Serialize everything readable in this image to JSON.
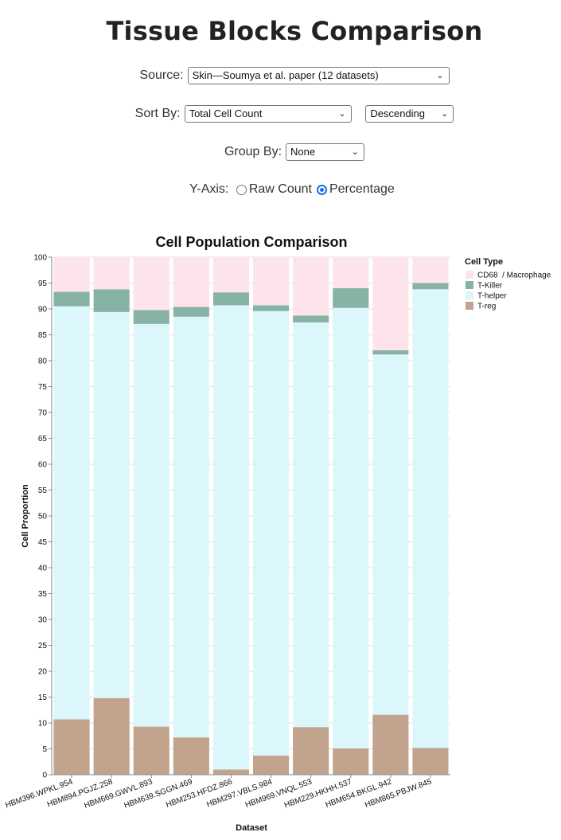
{
  "page": {
    "title": "Tissue Blocks Comparison"
  },
  "controls": {
    "source_label": "Source:",
    "source_value": "Skin—Soumya et al. paper (12 datasets)",
    "sortby_label": "Sort By:",
    "sortby_value": "Total Cell Count",
    "order_value": "Descending",
    "groupby_label": "Group By:",
    "groupby_value": "None",
    "yaxis_label": "Y-Axis:",
    "yaxis_options": [
      "Raw Count",
      "Percentage"
    ],
    "yaxis_selected": "Percentage"
  },
  "chart_data": {
    "type": "bar",
    "stacked": true,
    "title": "Cell Population Comparison",
    "xlabel": "Dataset",
    "ylabel": "Cell Proportion",
    "ylim": [
      0,
      100
    ],
    "yticks": [
      0,
      5,
      10,
      15,
      20,
      25,
      30,
      35,
      40,
      45,
      50,
      55,
      60,
      65,
      70,
      75,
      80,
      85,
      90,
      95,
      100
    ],
    "grid": true,
    "legend_title": "Cell Type",
    "legend_position": "right",
    "categories": [
      "HBM396.WPKL.954",
      "HBM894.PGJZ.258",
      "HBM669.GWVL.893",
      "HBM639.SGGN.469",
      "HBM253.HFDZ.866",
      "HBM297.VBLS.984",
      "HBM969.VNQL.553",
      "HBM229.HKHH.537",
      "HBM654.BKGL.942",
      "HBM865.PBJW.845"
    ],
    "series": [
      {
        "name": "T-reg",
        "color": "#c2a38d",
        "values": [
          10.7,
          14.8,
          9.3,
          7.2,
          1.0,
          3.7,
          9.2,
          5.1,
          11.6,
          5.2
        ]
      },
      {
        "name": "T-helper",
        "color": "#dcf7fb",
        "values": [
          79.8,
          74.6,
          77.8,
          81.3,
          89.7,
          85.9,
          78.2,
          85.1,
          69.6,
          88.6
        ]
      },
      {
        "name": "T-Killer",
        "color": "#87b3a6",
        "values": [
          2.8,
          4.4,
          2.7,
          1.9,
          2.5,
          1.1,
          1.3,
          3.8,
          0.8,
          1.2
        ]
      },
      {
        "name": "CD68  / Macrophage",
        "color": "#fde4ea",
        "values": [
          6.7,
          6.2,
          10.2,
          9.6,
          6.8,
          9.3,
          11.3,
          6.0,
          18.0,
          5.0
        ]
      }
    ],
    "legend_order": [
      "CD68  / Macrophage",
      "T-Killer",
      "T-helper",
      "T-reg"
    ]
  }
}
